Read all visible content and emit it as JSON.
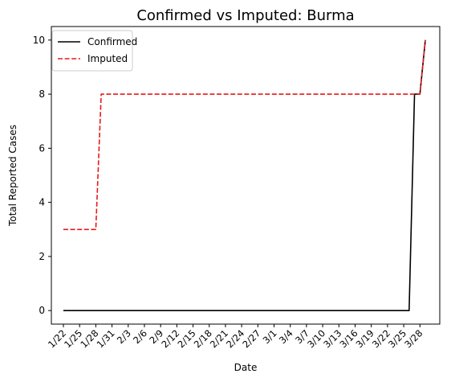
{
  "chart_data": {
    "type": "line",
    "title": "Confirmed vs Imputed: Burma",
    "xlabel": "Date",
    "ylabel": "Total Reported Cases",
    "x": [
      "1/22",
      "1/23",
      "1/24",
      "1/25",
      "1/26",
      "1/27",
      "1/28",
      "1/29",
      "1/30",
      "1/31",
      "2/1",
      "2/2",
      "2/3",
      "2/4",
      "2/5",
      "2/6",
      "2/7",
      "2/8",
      "2/9",
      "2/10",
      "2/11",
      "2/12",
      "2/13",
      "2/14",
      "2/15",
      "2/16",
      "2/17",
      "2/18",
      "2/19",
      "2/20",
      "2/21",
      "2/22",
      "2/23",
      "2/24",
      "2/25",
      "2/26",
      "2/27",
      "2/28",
      "2/29",
      "3/1",
      "3/2",
      "3/3",
      "3/4",
      "3/5",
      "3/6",
      "3/7",
      "3/8",
      "3/9",
      "3/10",
      "3/11",
      "3/12",
      "3/13",
      "3/14",
      "3/15",
      "3/16",
      "3/17",
      "3/18",
      "3/19",
      "3/20",
      "3/21",
      "3/22",
      "3/23",
      "3/24",
      "3/25",
      "3/26",
      "3/27",
      "3/28",
      "3/29"
    ],
    "xticks": [
      "1/22",
      "1/25",
      "1/28",
      "1/31",
      "2/3",
      "2/6",
      "2/9",
      "2/12",
      "2/15",
      "2/18",
      "2/21",
      "2/24",
      "2/27",
      "3/1",
      "3/4",
      "3/7",
      "3/10",
      "3/13",
      "3/16",
      "3/19",
      "3/22",
      "3/25",
      "3/28"
    ],
    "yticks": [
      0,
      2,
      4,
      6,
      8,
      10
    ],
    "ylim": [
      -0.5,
      10.5
    ],
    "legend_position": "upper-left",
    "series": [
      {
        "name": "Confirmed",
        "color": "#000000",
        "style": "solid",
        "values": [
          0,
          0,
          0,
          0,
          0,
          0,
          0,
          0,
          0,
          0,
          0,
          0,
          0,
          0,
          0,
          0,
          0,
          0,
          0,
          0,
          0,
          0,
          0,
          0,
          0,
          0,
          0,
          0,
          0,
          0,
          0,
          0,
          0,
          0,
          0,
          0,
          0,
          0,
          0,
          0,
          0,
          0,
          0,
          0,
          0,
          0,
          0,
          0,
          0,
          0,
          0,
          0,
          0,
          0,
          0,
          0,
          0,
          0,
          0,
          0,
          0,
          0,
          0,
          0,
          0,
          8,
          8,
          10
        ]
      },
      {
        "name": "Imputed",
        "color": "#e41a1c",
        "style": "dashed",
        "values": [
          3,
          3,
          3,
          3,
          3,
          3,
          3,
          8,
          8,
          8,
          8,
          8,
          8,
          8,
          8,
          8,
          8,
          8,
          8,
          8,
          8,
          8,
          8,
          8,
          8,
          8,
          8,
          8,
          8,
          8,
          8,
          8,
          8,
          8,
          8,
          8,
          8,
          8,
          8,
          8,
          8,
          8,
          8,
          8,
          8,
          8,
          8,
          8,
          8,
          8,
          8,
          8,
          8,
          8,
          8,
          8,
          8,
          8,
          8,
          8,
          8,
          8,
          8,
          8,
          8,
          8,
          8,
          10
        ]
      }
    ]
  }
}
